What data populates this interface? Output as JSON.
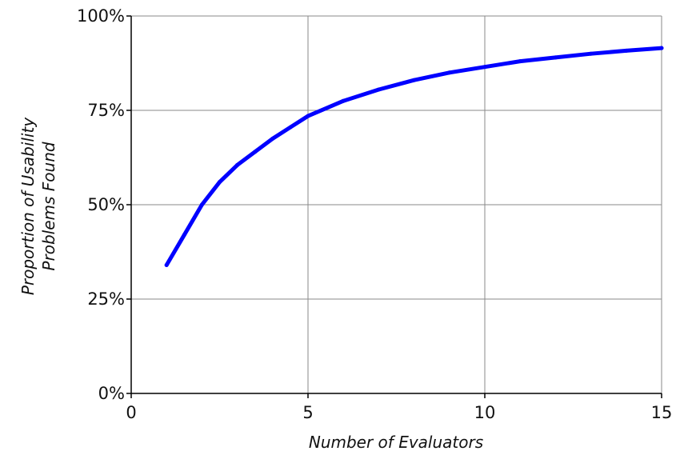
{
  "chart_data": {
    "type": "line",
    "title": "",
    "xlabel": "Number of Evaluators",
    "ylabel_lines": [
      "Proportion of Usability",
      "Problems Found"
    ],
    "xlim": [
      0,
      15
    ],
    "ylim": [
      0,
      100
    ],
    "x_ticks": [
      0,
      5,
      10,
      15
    ],
    "x_tick_labels": [
      "0",
      "5",
      "10",
      "15"
    ],
    "y_ticks": [
      0,
      25,
      50,
      75,
      100
    ],
    "y_tick_labels": [
      "0%",
      "25%",
      "50%",
      "75%",
      "100%"
    ],
    "grid": true,
    "legend": "none",
    "series": [
      {
        "color": "#0000ff",
        "x": [
          1,
          1.5,
          2,
          2.5,
          3,
          3.5,
          4,
          4.5,
          5,
          6,
          7,
          8,
          9,
          10,
          11,
          12,
          13,
          14,
          15
        ],
        "y": [
          34,
          42,
          50,
          56,
          60.5,
          64,
          67.5,
          70.5,
          73.5,
          77.5,
          80.5,
          83,
          85,
          86.5,
          88,
          89,
          90,
          90.8,
          91.5
        ]
      }
    ]
  }
}
